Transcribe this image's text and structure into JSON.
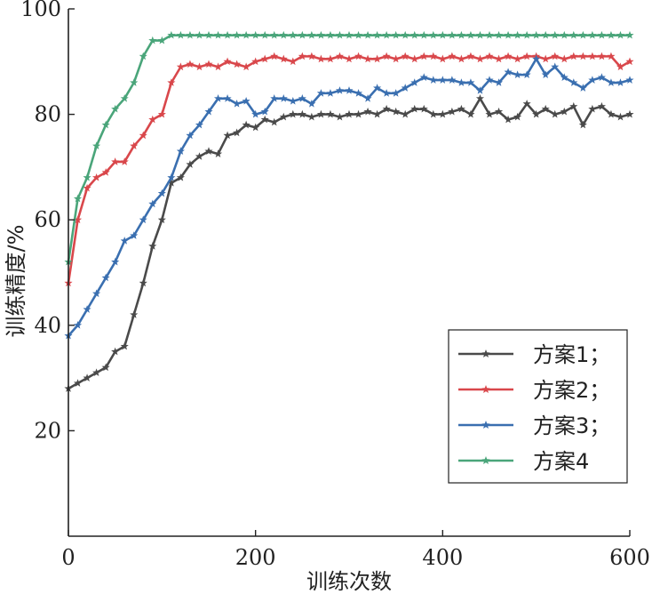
{
  "chart_data": {
    "type": "line",
    "xlabel": "训练次数",
    "ylabel": "训练精度/%",
    "xlim": [
      0,
      600
    ],
    "ylim": [
      0,
      100
    ],
    "xticks": [
      0,
      200,
      400,
      600
    ],
    "yticks": [
      20,
      40,
      60,
      80,
      100
    ],
    "grid": false,
    "legend_position": "bottom-right",
    "x": [
      0,
      10,
      20,
      30,
      40,
      50,
      60,
      70,
      80,
      90,
      100,
      110,
      120,
      130,
      140,
      150,
      160,
      170,
      180,
      190,
      200,
      210,
      220,
      230,
      240,
      250,
      260,
      270,
      280,
      290,
      300,
      310,
      320,
      330,
      340,
      350,
      360,
      370,
      380,
      390,
      400,
      410,
      420,
      430,
      440,
      450,
      460,
      470,
      480,
      490,
      500,
      510,
      520,
      530,
      540,
      550,
      560,
      570,
      580,
      590,
      600
    ],
    "series": [
      {
        "name": "方案1；",
        "color": "#4a4a4a",
        "values": [
          28,
          29,
          30,
          31,
          32,
          35,
          36,
          42,
          48,
          55,
          60,
          67,
          68,
          70.5,
          72,
          73,
          72.5,
          76,
          76.5,
          78,
          77.5,
          79,
          78.5,
          79.5,
          80,
          80,
          79.5,
          80,
          80,
          79.5,
          80,
          80,
          80.5,
          80,
          81,
          80.5,
          80,
          81,
          81,
          80,
          80,
          80.5,
          81,
          80,
          83,
          80,
          80.5,
          79,
          79.5,
          82,
          80,
          81,
          80,
          80.5,
          81.5,
          78,
          81,
          81.5,
          80,
          79.5,
          80
        ]
      },
      {
        "name": "方案2；",
        "color": "#d9474b",
        "values": [
          48,
          60,
          66,
          68,
          69,
          71,
          71,
          74,
          76,
          79,
          80,
          86,
          89,
          89.5,
          89,
          89.5,
          89,
          90,
          89.5,
          89,
          90,
          90.5,
          91,
          90.5,
          90,
          91,
          91,
          90.5,
          90.5,
          91,
          90.5,
          91,
          90.5,
          90.5,
          91,
          90.5,
          91,
          90.5,
          91,
          91,
          90.5,
          91,
          90.5,
          91,
          90.5,
          91,
          90.5,
          91,
          90.5,
          91,
          91,
          90.5,
          91,
          90.5,
          91,
          91,
          91,
          91,
          91,
          89,
          90
        ]
      },
      {
        "name": "方案3；",
        "color": "#3a6fb0",
        "values": [
          38,
          40,
          43,
          46,
          49,
          52,
          56,
          57,
          60,
          63,
          65,
          68,
          73,
          76,
          78,
          80.5,
          83,
          83,
          82,
          82.5,
          80,
          80.5,
          83,
          83,
          82.5,
          83,
          82,
          84,
          84,
          84.5,
          84.5,
          84,
          83,
          85,
          84,
          84,
          85,
          86,
          87,
          86.5,
          86.5,
          86.5,
          86,
          86,
          84.5,
          86.5,
          86,
          88,
          87.5,
          87.5,
          90.5,
          87.5,
          89,
          87,
          86,
          85,
          86.5,
          87,
          86,
          86,
          86.5
        ]
      },
      {
        "name": "方案4",
        "color": "#4aa57a",
        "values": [
          52,
          64,
          68,
          74,
          78,
          81,
          83,
          86,
          91,
          94,
          94,
          95,
          95,
          95,
          95,
          95,
          95,
          95,
          95,
          95,
          95,
          95,
          95,
          95,
          95,
          95,
          95,
          95,
          95,
          95,
          95,
          95,
          95,
          95,
          95,
          95,
          95,
          95,
          95,
          95,
          95,
          95,
          95,
          95,
          95,
          95,
          95,
          95,
          95,
          95,
          95,
          95,
          95,
          95,
          95,
          95,
          95,
          95,
          95,
          95,
          95
        ]
      }
    ]
  }
}
